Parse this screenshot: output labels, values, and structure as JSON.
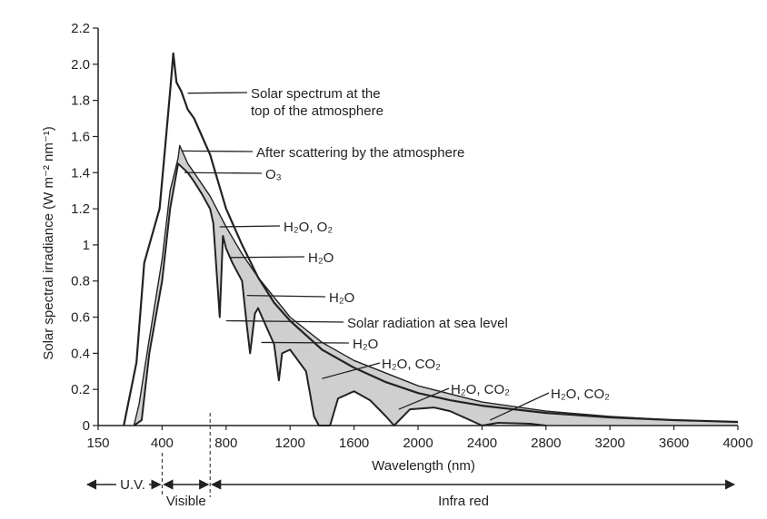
{
  "chart_data": {
    "type": "area",
    "xlabel": "Wavelength (nm)",
    "ylabel": "Solar spectral irradiance (W m⁻² nm⁻¹)",
    "x_ticks": [
      150,
      400,
      800,
      1200,
      1600,
      2000,
      2400,
      2800,
      3200,
      3600,
      4000
    ],
    "y_ticks": [
      "0",
      "0.2",
      "0.4",
      "0.6",
      "0.8",
      "1",
      "1.2",
      "1.4",
      "1.6",
      "1.8",
      "2.0",
      "2.2"
    ],
    "ylim": [
      0,
      2.2
    ],
    "grid": false,
    "series": [
      {
        "name": "Solar spectrum at the top of the atmosphere",
        "points": [
          [
            250,
            0
          ],
          [
            300,
            0.35
          ],
          [
            330,
            0.9
          ],
          [
            360,
            1.05
          ],
          [
            390,
            1.2
          ],
          [
            420,
            1.55
          ],
          [
            450,
            1.85
          ],
          [
            470,
            2.06
          ],
          [
            490,
            1.9
          ],
          [
            520,
            1.85
          ],
          [
            560,
            1.75
          ],
          [
            600,
            1.7
          ],
          [
            650,
            1.6
          ],
          [
            700,
            1.5
          ],
          [
            800,
            1.2
          ],
          [
            900,
            1.0
          ],
          [
            1000,
            0.82
          ],
          [
            1100,
            0.68
          ],
          [
            1200,
            0.58
          ],
          [
            1400,
            0.42
          ],
          [
            1600,
            0.32
          ],
          [
            1800,
            0.24
          ],
          [
            2000,
            0.18
          ],
          [
            2200,
            0.14
          ],
          [
            2400,
            0.11
          ],
          [
            2800,
            0.07
          ],
          [
            3200,
            0.045
          ],
          [
            3600,
            0.03
          ],
          [
            4000,
            0.02
          ]
        ]
      },
      {
        "name": "After scattering by the atmosphere",
        "points": [
          [
            290,
            0
          ],
          [
            310,
            0.12
          ],
          [
            350,
            0.48
          ],
          [
            400,
            0.92
          ],
          [
            450,
            1.3
          ],
          [
            500,
            1.48
          ],
          [
            510,
            1.55
          ],
          [
            560,
            1.45
          ],
          [
            600,
            1.4
          ],
          [
            700,
            1.27
          ],
          [
            800,
            1.1
          ],
          [
            900,
            0.95
          ],
          [
            1000,
            0.82
          ],
          [
            1200,
            0.6
          ],
          [
            1400,
            0.46
          ],
          [
            1600,
            0.36
          ],
          [
            2000,
            0.22
          ],
          [
            2400,
            0.13
          ],
          [
            2800,
            0.08
          ],
          [
            3200,
            0.05
          ],
          [
            3600,
            0.03
          ],
          [
            4000,
            0.02
          ]
        ]
      },
      {
        "name": "Solar radiation at sea level",
        "points": [
          [
            290,
            0
          ],
          [
            320,
            0.03
          ],
          [
            350,
            0.4
          ],
          [
            400,
            0.8
          ],
          [
            450,
            1.2
          ],
          [
            500,
            1.45
          ],
          [
            560,
            1.4
          ],
          [
            600,
            1.35
          ],
          [
            650,
            1.28
          ],
          [
            700,
            1.2
          ],
          [
            720,
            1.12
          ],
          [
            760,
            0.6
          ],
          [
            780,
            1.05
          ],
          [
            800,
            0.98
          ],
          [
            840,
            0.9
          ],
          [
            900,
            0.8
          ],
          [
            930,
            0.55
          ],
          [
            950,
            0.4
          ],
          [
            980,
            0.62
          ],
          [
            1000,
            0.65
          ],
          [
            1050,
            0.55
          ],
          [
            1100,
            0.45
          ],
          [
            1130,
            0.25
          ],
          [
            1150,
            0.4
          ],
          [
            1200,
            0.42
          ],
          [
            1300,
            0.3
          ],
          [
            1350,
            0.05
          ],
          [
            1380,
            0
          ],
          [
            1450,
            0
          ],
          [
            1500,
            0.15
          ],
          [
            1600,
            0.19
          ],
          [
            1700,
            0.14
          ],
          [
            1800,
            0.05
          ],
          [
            1850,
            0
          ],
          [
            1950,
            0.09
          ],
          [
            2100,
            0.1
          ],
          [
            2200,
            0.08
          ],
          [
            2300,
            0.04
          ],
          [
            2400,
            0
          ],
          [
            2500,
            0.015
          ],
          [
            2700,
            0.01
          ],
          [
            2800,
            0
          ]
        ]
      }
    ],
    "annotations": [
      {
        "text": "Solar spectrum at the",
        "text2": "top of the atmosphere",
        "x": 560,
        "y": 1.84
      },
      {
        "text": "After scattering by the atmosphere",
        "x": 520,
        "y": 1.52
      },
      {
        "text": "O₃",
        "x": 540,
        "y": 1.4
      },
      {
        "text": "H₂O, O₂",
        "x": 760,
        "y": 1.1
      },
      {
        "text": "H₂O",
        "x": 820,
        "y": 0.93
      },
      {
        "text": "H₂O",
        "x": 930,
        "y": 0.72
      },
      {
        "text": "Solar radiation at sea level",
        "x": 800,
        "y": 0.58
      },
      {
        "text": "H₂O",
        "x": 1020,
        "y": 0.46
      },
      {
        "text": "H₂O, CO₂",
        "x": 1400,
        "y": 0.26
      },
      {
        "text": "H₂O, CO₂",
        "x": 1880,
        "y": 0.09
      },
      {
        "text": "H₂O, CO₂",
        "x": 2450,
        "y": 0.03
      }
    ],
    "bands": [
      {
        "label": "U.V.",
        "from": 150,
        "to": 400
      },
      {
        "label": "Visible",
        "from": 400,
        "to": 700
      },
      {
        "label": "Infra red",
        "from": 700,
        "to": 4000
      }
    ]
  }
}
